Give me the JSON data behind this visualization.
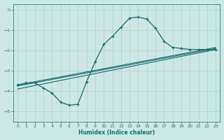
{
  "xlabel": "Humidex (Indice chaleur)",
  "ylabel": "",
  "bg_color": "#cce8e4",
  "grid_color": "#aad0cc",
  "line_color": "#1a6b6b",
  "xlim": [
    -0.5,
    23.5
  ],
  "ylim": [
    -5.5,
    0.3
  ],
  "yticks": [
    0,
    -1,
    -2,
    -3,
    -4,
    -5
  ],
  "xticks": [
    0,
    1,
    2,
    3,
    4,
    5,
    6,
    7,
    8,
    9,
    10,
    11,
    12,
    13,
    14,
    15,
    16,
    17,
    18,
    19,
    20,
    21,
    22,
    23
  ],
  "curve_x": [
    0,
    1,
    2,
    3,
    4,
    5,
    6,
    7,
    8,
    9,
    10,
    11,
    12,
    13,
    14,
    15,
    16,
    17,
    18,
    19,
    20,
    21,
    22,
    23
  ],
  "curve_y": [
    -3.7,
    -3.6,
    -3.6,
    -3.85,
    -4.1,
    -4.55,
    -4.7,
    -4.65,
    -3.55,
    -2.55,
    -1.7,
    -1.3,
    -0.85,
    -0.4,
    -0.35,
    -0.45,
    -0.9,
    -1.55,
    -1.85,
    -1.9,
    -1.95,
    -1.95,
    -1.95,
    -1.95
  ],
  "line1_x": [
    0,
    23
  ],
  "line1_y": [
    -3.7,
    -1.85
  ],
  "line2_x": [
    0,
    23
  ],
  "line2_y": [
    -3.75,
    -1.9
  ],
  "line3_x": [
    0,
    23
  ],
  "line3_y": [
    -3.9,
    -1.95
  ]
}
